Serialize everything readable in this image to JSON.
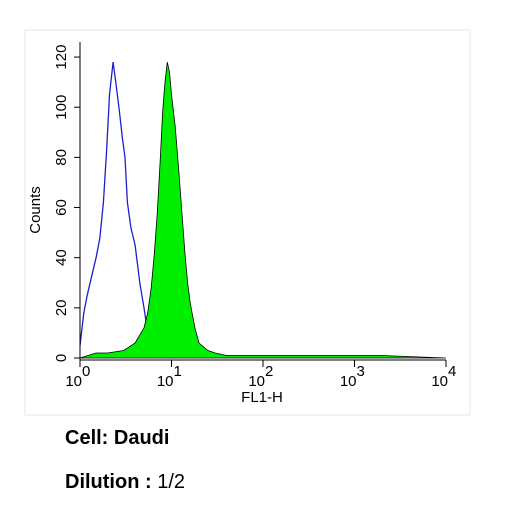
{
  "chart_data": {
    "type": "area-histogram",
    "y_label": "Counts",
    "x_label": "FL1-H",
    "xscale": "log",
    "xlim": [
      1,
      10000
    ],
    "xticks": [
      {
        "value": 1,
        "label": "10",
        "sup": "0"
      },
      {
        "value": 10,
        "label": "10",
        "sup": "1"
      },
      {
        "value": 100,
        "label": "10",
        "sup": "2"
      },
      {
        "value": 1000,
        "label": "10",
        "sup": "3"
      },
      {
        "value": 10000,
        "label": "10",
        "sup": "4"
      }
    ],
    "ylim": [
      0,
      126
    ],
    "yticks": [
      0,
      20,
      40,
      60,
      80,
      100,
      120
    ],
    "series": [
      {
        "color": "#1f1fcf",
        "fill": false,
        "x": [
          1,
          1.1,
          1.2,
          1.35,
          1.5,
          1.65,
          1.8,
          1.95,
          2.1,
          2.3,
          2.5,
          2.7,
          2.9,
          3.1,
          3.3,
          3.6,
          4,
          4.5,
          5,
          5.5,
          6,
          7,
          8,
          10
        ],
        "values": [
          5,
          18,
          25,
          33,
          40,
          48,
          62,
          82,
          105,
          118,
          108,
          98,
          88,
          80,
          62,
          52,
          45,
          30,
          20,
          10,
          5,
          2,
          1,
          0
        ]
      },
      {
        "color": "#00ee00",
        "fill": true,
        "x": [
          1,
          1.5,
          2,
          3,
          4,
          5,
          5.5,
          6,
          6.5,
          7,
          7.5,
          8,
          8.5,
          9,
          9.5,
          10,
          11,
          12,
          13,
          14,
          15,
          16,
          18,
          20,
          25,
          30,
          40,
          60,
          100,
          200,
          500,
          1000,
          2000,
          10000
        ],
        "values": [
          0,
          2,
          2,
          3,
          6,
          12,
          18,
          28,
          42,
          58,
          78,
          98,
          110,
          118,
          114,
          105,
          92,
          75,
          58,
          42,
          30,
          22,
          12,
          6,
          3,
          2,
          1,
          1,
          1,
          1,
          1,
          1,
          1,
          0
        ]
      }
    ]
  },
  "caption": {
    "cell": "Cell: Daudi",
    "dilution_label": "Dilution :",
    "dilution_value": "1/2"
  }
}
